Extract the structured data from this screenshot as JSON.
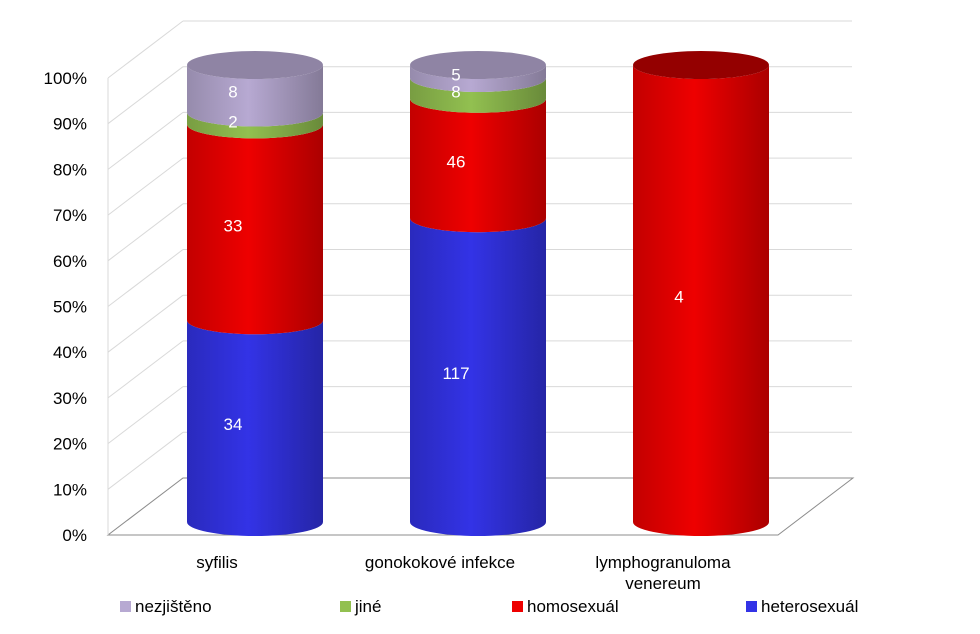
{
  "chart_data": {
    "type": "bar",
    "stacked": "percent",
    "style": "3d-cylinder",
    "title": "",
    "xlabel": "",
    "ylabel": "",
    "ylim": [
      0,
      100
    ],
    "y_ticks": [
      "0%",
      "10%",
      "20%",
      "30%",
      "40%",
      "50%",
      "60%",
      "70%",
      "80%",
      "90%",
      "100%"
    ],
    "categories": [
      [
        "syfilis"
      ],
      [
        "gonokokové infekce"
      ],
      [
        "lymphogranuloma",
        "venereum"
      ]
    ],
    "series": [
      {
        "name": "heterosexuál",
        "color": "#3333e6",
        "values": [
          34,
          117,
          0
        ]
      },
      {
        "name": "homosexuál",
        "color": "#ee0000",
        "values": [
          33,
          46,
          4
        ]
      },
      {
        "name": "jiné",
        "color": "#92c050",
        "values": [
          2,
          8,
          0
        ]
      },
      {
        "name": "nezjištěno",
        "color": "#b7a9d2",
        "values": [
          8,
          5,
          0
        ]
      }
    ],
    "legend_order": [
      "nezjištěno",
      "jiné",
      "homosexuál",
      "heterosexuál"
    ],
    "legend_position": "bottom",
    "grid": true
  }
}
